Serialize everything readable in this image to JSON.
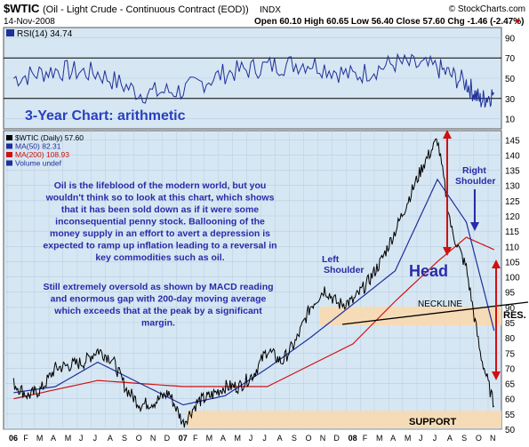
{
  "header": {
    "symbol": "$WTIC",
    "name": "(Oil - Light Crude - Continuous Contract (EOD))",
    "exchange": "INDX",
    "watermark": "© StockCharts.com",
    "date": "14-Nov-2008",
    "ohlc": "Open 60.10 High 60.65 Low 56.40 Close 57.60 Chg -1.46 (-2.47%)",
    "ohlc_arrow": "▼"
  },
  "rsi": {
    "label": "RSI(14) 34.74",
    "overbought": 70,
    "oversold": 30,
    "ticks": [
      "90",
      "70",
      "50",
      "30",
      "10"
    ],
    "chart_title": "3-Year Chart: arithmetic"
  },
  "main": {
    "legend": [
      {
        "text": "$WTIC (Daily) 57.60",
        "color": "#000000"
      },
      {
        "text": "MA(50) 82.31",
        "color": "#1f2f9a"
      },
      {
        "text": "MA(200) 108.93",
        "color": "#d01010"
      },
      {
        "text": "Volume undef",
        "color": "#1f2f9a"
      }
    ],
    "commentary_1": "Oil is the lifeblood of the modern world, but you wouldn't think so to look at this chart, which shows that it has been sold down as if it were some inconsequential penny stock. Ballooning of the money supply in an effort to avert a depression is expected to ramp up inflation leading to a reversal in key commodities such as oil.",
    "commentary_2": "Still extremely oversold as shown by MACD reading and enormous gap with 200-day moving average which exceeds that at the peak by a significant margin.",
    "labels": {
      "left_shoulder": "Left Shoulder",
      "right_shoulder": "Right Shoulder",
      "head": "Head",
      "neckline": "NECKLINE",
      "resistance": "RES.",
      "support": "SUPPORT"
    },
    "price_ticks": [
      "145",
      "140",
      "135",
      "130",
      "125",
      "120",
      "115",
      "110",
      "105",
      "100",
      "95",
      "90",
      "85",
      "80",
      "75",
      "70",
      "65",
      "60",
      "55",
      "50"
    ],
    "x_ticks": [
      "06",
      "F",
      "M",
      "A",
      "M",
      "J",
      "J",
      "A",
      "S",
      "O",
      "N",
      "D",
      "07",
      "F",
      "M",
      "A",
      "M",
      "J",
      "J",
      "A",
      "S",
      "O",
      "N",
      "D",
      "08",
      "F",
      "M",
      "A",
      "M",
      "J",
      "J",
      "A",
      "S",
      "O",
      "N"
    ]
  },
  "colors": {
    "background": "#d6e7f3",
    "price": "#000000",
    "ma50": "#1f2f9a",
    "ma200": "#d01010",
    "zone": "#f9d9b0",
    "annot": "#2a2aa8",
    "title": "#2a3fbf"
  },
  "chart_data": [
    {
      "type": "line",
      "title": "RSI(14) 34.74",
      "ylim": [
        0,
        100
      ],
      "reference_lines": [
        70,
        30
      ],
      "series": [
        {
          "name": "RSI(14)",
          "x": [
            "2006-01",
            "2006-04",
            "2006-07",
            "2006-10",
            "2007-01",
            "2007-04",
            "2007-07",
            "2007-10",
            "2008-01",
            "2008-04",
            "2008-07",
            "2008-09",
            "2008-10",
            "2008-11-14"
          ],
          "values": [
            50,
            58,
            55,
            35,
            38,
            55,
            62,
            65,
            52,
            65,
            60,
            45,
            28,
            34.74
          ]
        }
      ]
    },
    {
      "type": "line",
      "title": "$WTIC (Daily) 57.60",
      "ylim": [
        50,
        148
      ],
      "series": [
        {
          "name": "$WTIC (Daily)",
          "x": [
            "2006-01",
            "2006-02",
            "2006-03",
            "2006-04",
            "2006-05",
            "2006-06",
            "2006-07",
            "2006-08",
            "2006-09",
            "2006-10",
            "2006-11",
            "2006-12",
            "2007-01",
            "2007-02",
            "2007-03",
            "2007-04",
            "2007-05",
            "2007-06",
            "2007-07",
            "2007-08",
            "2007-09",
            "2007-10",
            "2007-11",
            "2007-12",
            "2008-01",
            "2008-02",
            "2008-03",
            "2008-04",
            "2008-05",
            "2008-06",
            "2008-07",
            "2008-08",
            "2008-09",
            "2008-10",
            "2008-11-14"
          ],
          "values": [
            65,
            61,
            63,
            70,
            71,
            72,
            76,
            73,
            63,
            58,
            59,
            62,
            52,
            59,
            61,
            64,
            64,
            68,
            76,
            72,
            79,
            90,
            96,
            91,
            92,
            98,
            105,
            115,
            126,
            137,
            145,
            115,
            103,
            75,
            57.6
          ]
        },
        {
          "name": "MA(50)",
          "x": [
            "2006-01",
            "2006-04",
            "2006-07",
            "2006-10",
            "2007-01",
            "2007-04",
            "2007-07",
            "2007-10",
            "2008-01",
            "2008-04",
            "2008-07",
            "2008-09",
            "2008-11-14"
          ],
          "values": [
            62,
            64,
            72,
            65,
            58,
            61,
            70,
            80,
            91,
            102,
            132,
            118,
            82.31
          ]
        },
        {
          "name": "MA(200)",
          "x": [
            "2006-01",
            "2006-07",
            "2007-01",
            "2007-07",
            "2008-01",
            "2008-04",
            "2008-07",
            "2008-09",
            "2008-11-14"
          ],
          "values": [
            60,
            66,
            64,
            64,
            78,
            92,
            105,
            113,
            108.93
          ]
        }
      ],
      "annotations": [
        "Left Shoulder",
        "Head",
        "Right Shoulder",
        "NECKLINE",
        "RES.",
        "SUPPORT"
      ]
    }
  ]
}
